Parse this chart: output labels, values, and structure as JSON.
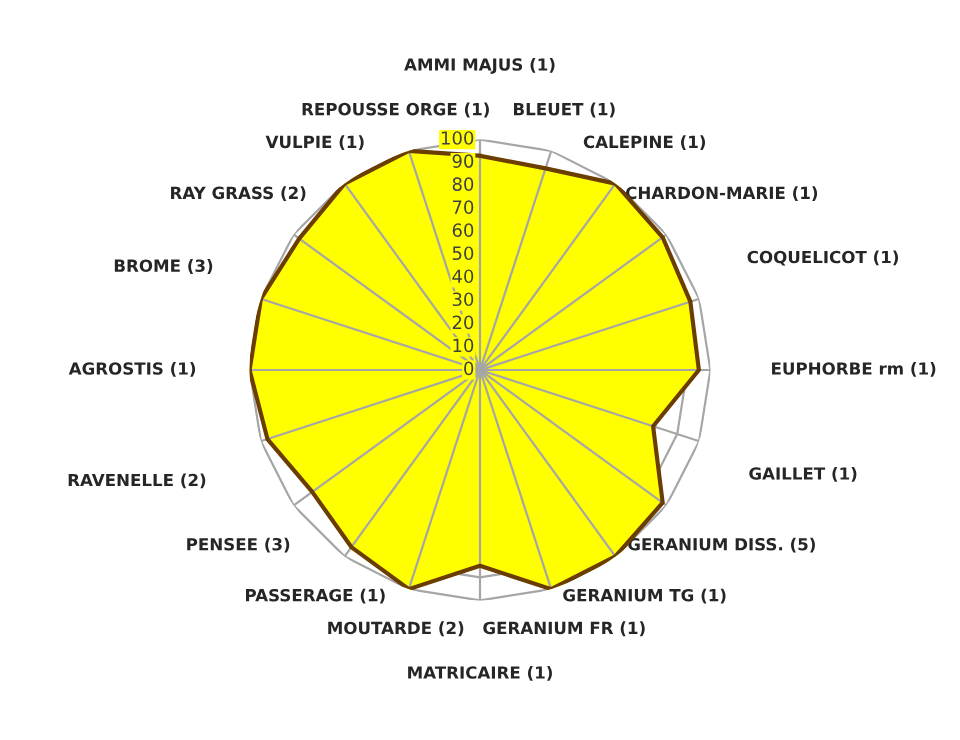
{
  "chart_data": {
    "type": "radar",
    "categories": [
      "AMMI MAJUS (1)",
      "BLEUET (1)",
      "CALEPINE (1)",
      "CHARDON-MARIE (1)",
      "COQUELICOT (1)",
      "EUPHORBE rm (1)",
      "GAILLET (1)",
      "GERANIUM DISS. (5)",
      "GERANIUM TG (1)",
      "GERANIUM FR (1)",
      "MATRICAIRE (1)",
      "MOUTARDE (2)",
      "PASSERAGE (1)",
      "PENSEE (3)",
      "RAVENELLE (2)",
      "AGROSTIS (1)",
      "BROME (3)",
      "RAY GRASS (2)",
      "VULPIE (1)",
      "REPOUSSE ORGE (1)"
    ],
    "series": [
      {
        "color": "#ffff00",
        "values": [
          93,
          92,
          100,
          98,
          96,
          95,
          79,
          98,
          100,
          100,
          85,
          100,
          95,
          90,
          97,
          100,
          100,
          97,
          100,
          100
        ]
      }
    ],
    "ylim": [
      0,
      100
    ],
    "yticks": [
      0,
      10,
      20,
      30,
      40,
      50,
      60,
      70,
      80,
      90,
      100
    ],
    "grid": true,
    "legend": false
  }
}
